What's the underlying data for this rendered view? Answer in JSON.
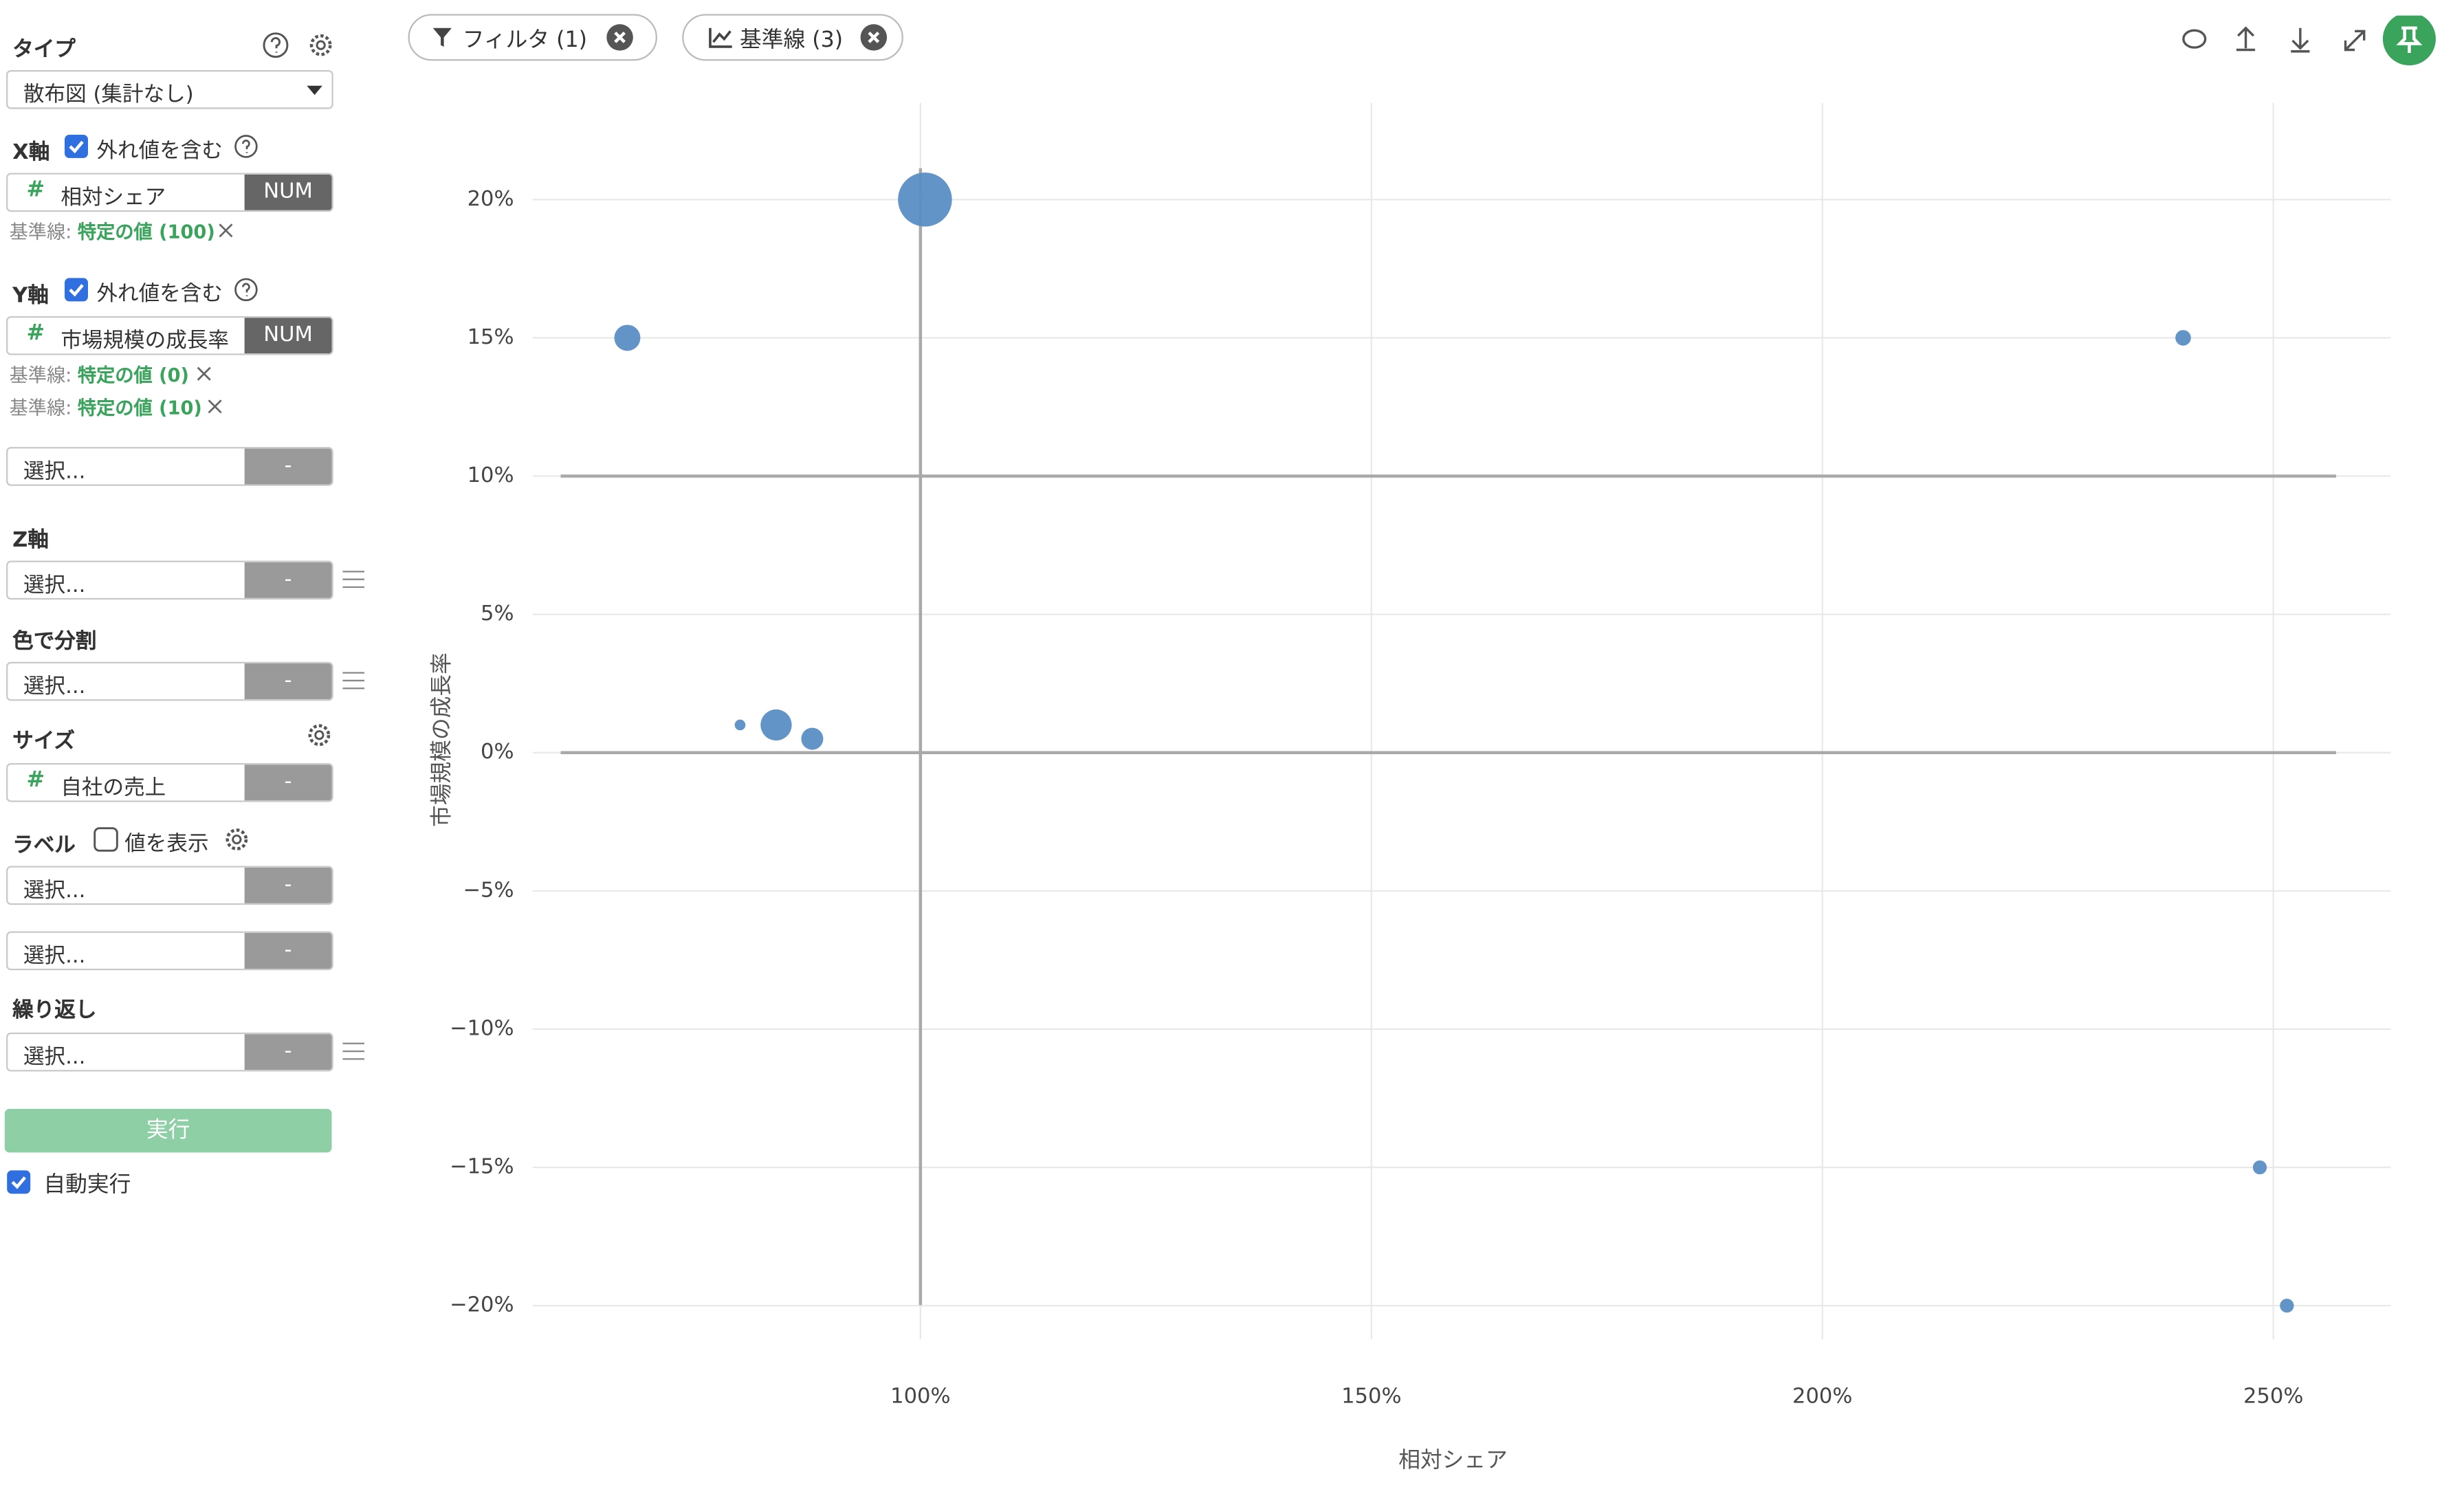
{
  "toolbar": {
    "filter": "フィルタ (1)",
    "baseline": "基準線 (3)"
  },
  "sidebar": {
    "field_icon": "#",
    "type": {
      "label": "タイプ",
      "value": "散布図 (集計なし)"
    },
    "x_axis": {
      "label": "X軸",
      "option": "外れ値を含む",
      "field": "相対シェア",
      "tag": "NUM",
      "baselines": [
        {
          "prefix": "基準線:",
          "value": "特定の値 (100)"
        }
      ]
    },
    "y_axis": {
      "label": "Y軸",
      "option": "外れ値を含む",
      "field": "市場規模の成長率",
      "tag": "NUM",
      "baselines": [
        {
          "prefix": "基準線:",
          "value": "特定の値 (0)"
        },
        {
          "prefix": "基準線:",
          "value": "特定の値 (10)"
        }
      ],
      "extra": {
        "placeholder": "選択...",
        "tag": "-"
      }
    },
    "z_axis": {
      "label": "Z軸",
      "placeholder": "選択...",
      "tag": "-"
    },
    "color": {
      "label": "色で分割",
      "placeholder": "選択...",
      "tag": "-"
    },
    "size": {
      "label": "サイズ",
      "field": "自社の売上",
      "tag": "-"
    },
    "label": {
      "label": "ラベル",
      "option": "値を表示",
      "fields": [
        {
          "placeholder": "選択...",
          "tag": "-"
        },
        {
          "placeholder": "選択...",
          "tag": "-"
        }
      ]
    },
    "repeat": {
      "label": "繰り返し",
      "placeholder": "選択...",
      "tag": "-"
    },
    "run_button": "実行",
    "auto_run": "自動実行"
  },
  "chart_data": {
    "type": "scatter",
    "x_label": "相対シェア",
    "y_label": "市場規模の成長率",
    "color": "#5b8ec4",
    "x": [
      100.5,
      67.5,
      240,
      80,
      84,
      88,
      248.5,
      251.5
    ],
    "values": [
      20,
      15,
      15,
      1,
      1,
      0.5,
      -15,
      -20
    ],
    "sizes": [
      300,
      70,
      25,
      12,
      100,
      50,
      20,
      20
    ],
    "xlim": [
      57,
      263
    ],
    "ylim": [
      -21.5,
      23.5
    ],
    "xticks": [
      {
        "value": 100,
        "label": "100%"
      },
      {
        "value": 150,
        "label": "150%"
      },
      {
        "value": 200,
        "label": "200%"
      },
      {
        "value": 250,
        "label": "250%"
      }
    ],
    "yticks": [
      {
        "value": -20,
        "label": "−20%"
      },
      {
        "value": -15,
        "label": "−15%"
      },
      {
        "value": -10,
        "label": "−10%"
      },
      {
        "value": -5,
        "label": "−5%"
      },
      {
        "value": 0,
        "label": "0%"
      },
      {
        "value": 5,
        "label": "5%"
      },
      {
        "value": 10,
        "label": "10%"
      },
      {
        "value": 15,
        "label": "15%"
      },
      {
        "value": 20,
        "label": "20%"
      }
    ],
    "grid": true,
    "grid_color": "#e9e9e9",
    "reference_lines": [
      {
        "axis": "x",
        "value": 100
      },
      {
        "axis": "y",
        "value": 0
      },
      {
        "axis": "y",
        "value": 10
      }
    ],
    "reference_color": "#a9a9a9"
  }
}
